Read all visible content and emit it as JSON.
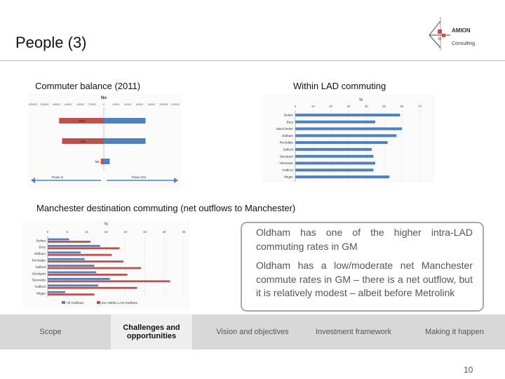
{
  "slide": {
    "title": "People (3)",
    "page_number": "10"
  },
  "logo": {
    "line1": "AMION",
    "line2": "Consulting"
  },
  "labels": {
    "commuter_balance": "Commuter balance (2011)",
    "within_lad": "Within LAD commuting",
    "manchester_dest": "Manchester destination commuting (net outflows to Manchester)"
  },
  "callout": {
    "p1": "Oldham has one of the  higher intra-LAD commuting rates in GM",
    "p2": "Oldham has a low/moderate net Manchester commute rates in GM – there is a net outflow, but it is relatively modest – albeit before Metrolink"
  },
  "nav": {
    "items": [
      {
        "label": "Scope"
      },
      {
        "label": "Challenges and opportunities"
      },
      {
        "label": "Vision and objectives"
      },
      {
        "label": "Investment framework"
      },
      {
        "label": "Making it happen"
      }
    ]
  },
  "colors": {
    "blue": "#4f81bd",
    "red": "#c0504d",
    "nav_bg": "#d8d8d8",
    "nav_active_bg": "#eeeeee"
  },
  "chart_data": [
    {
      "type": "bar",
      "orientation": "horizontal",
      "title": "Commuter balance (2011)",
      "xlabel": "No",
      "xlim": [
        -120000,
        120000
      ],
      "ticks": [
        "-120000",
        "-100000",
        "-80000",
        "-60000",
        "-40000",
        "-20000",
        "0",
        "20000",
        "40000",
        "60000",
        "80000",
        "100000",
        "120000"
      ],
      "categories": [
        "Total",
        "SM",
        "Ms"
      ],
      "series": [
        {
          "name": "Outflow",
          "color": "#c0504d",
          "values": [
            -75000,
            -70000,
            -5000
          ]
        },
        {
          "name": "Inflow",
          "color": "#4f81bd",
          "values": [
            70000,
            70000,
            10000
          ]
        }
      ],
      "annotations": [
        "Flows In",
        "Flows Out"
      ]
    },
    {
      "type": "bar",
      "orientation": "horizontal",
      "title": "Within LAD commuting",
      "xlabel": "%",
      "xlim": [
        0,
        75
      ],
      "ticks": [
        "0",
        "10",
        "20",
        "30",
        "40",
        "50",
        "60",
        "70"
      ],
      "categories": [
        "Bolton",
        "Bury",
        "Manchester",
        "Oldham",
        "Rochdale",
        "Salford",
        "Stockport",
        "Tameside",
        "Trafford",
        "Wigan"
      ],
      "series": [
        {
          "name": "Within LAD",
          "color": "#4f81bd",
          "values": [
            59,
            45,
            60,
            57,
            52,
            43,
            44,
            45,
            44,
            53
          ]
        }
      ]
    },
    {
      "type": "bar",
      "orientation": "horizontal",
      "title": "Manchester destination commuting (net outflows to Manchester)",
      "xlabel": "%",
      "xlim": [
        0,
        35
      ],
      "ticks": [
        "0",
        "5",
        "10",
        "15",
        "20",
        "25",
        "30",
        "35"
      ],
      "categories": [
        "Bolton",
        "Bury",
        "Oldham",
        "Rochdale",
        "Salford",
        "Stockport",
        "Tameside",
        "Trafford",
        "Wigan"
      ],
      "series": [
        {
          "name": "All Outflows",
          "color": "#4f81bd",
          "values": [
            5.5,
            13.5,
            8.5,
            9.5,
            12,
            12.5,
            16,
            13,
            4.5
          ]
        },
        {
          "name": "Exc Within LAD Outflows",
          "color": "#c0504d",
          "values": [
            11,
            18.5,
            16.5,
            19.5,
            24,
            20.5,
            31.5,
            23,
            12
          ]
        }
      ]
    }
  ]
}
